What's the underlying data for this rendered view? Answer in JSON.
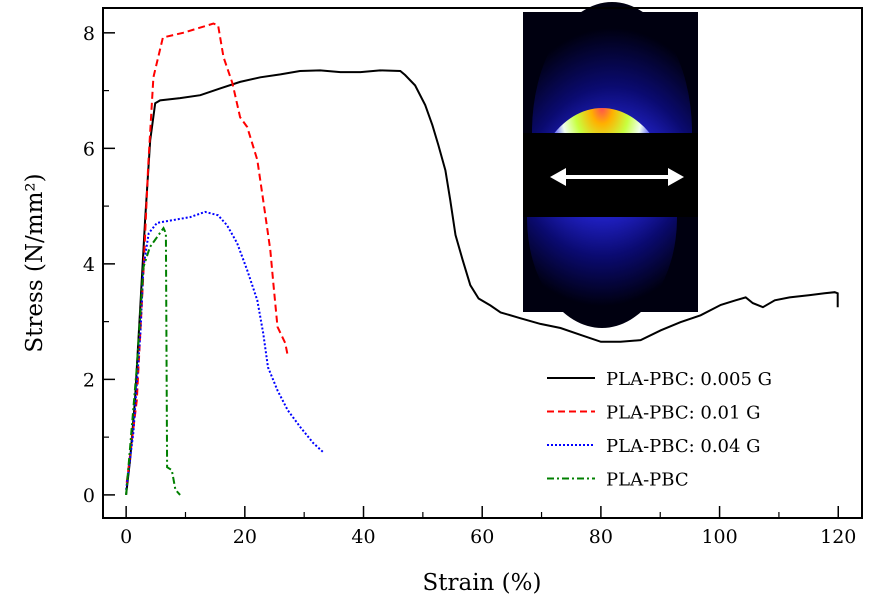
{
  "chart_data": {
    "type": "line",
    "title": "",
    "xlabel": "Strain (%)",
    "ylabel": "Stress (N/mm²)",
    "xlim": [
      -3.9,
      124
    ],
    "ylim": [
      -0.4,
      8.43
    ],
    "xticks": [
      0,
      20,
      40,
      60,
      80,
      100,
      120
    ],
    "yticks": [
      0,
      2,
      4,
      6,
      8
    ],
    "xtick_labels": [
      "0",
      "20",
      "40",
      "60",
      "80",
      "100",
      "120"
    ],
    "ytick_labels": [
      "0",
      "2",
      "4",
      "6",
      "8"
    ],
    "grid": false,
    "legend_position": "bottom-right",
    "inset": "2D scattering pattern image with double-headed horizontal arrow",
    "series": [
      {
        "name": "PLA-PBC: 0.005 G",
        "color": "#000000",
        "dash": "solid",
        "x": [
          0,
          0.67,
          1.5,
          2.36,
          3.2,
          4.05,
          4.89,
          5.73,
          9.1,
          12.5,
          15.9,
          19.2,
          22.6,
          26,
          29.3,
          32.7,
          36.1,
          39.5,
          42.8,
          46.2,
          47.0,
          48.7,
          50.4,
          51.6,
          52.6,
          53.8,
          54.6,
          55.5,
          56.7,
          58,
          59.4,
          61.4,
          63.1,
          66.4,
          69.8,
          73.2,
          76.6,
          80,
          83.3,
          86.7,
          90.1,
          93.4,
          96.8,
          100.2,
          102.7,
          104.4,
          105.6,
          107.3,
          109.3,
          111.8,
          115.2,
          117.7,
          119.4,
          119.9,
          119.9
        ],
        "y": [
          0,
          0.61,
          1.64,
          3.2,
          4.76,
          6.14,
          6.78,
          6.83,
          6.87,
          6.92,
          7.04,
          7.15,
          7.23,
          7.28,
          7.34,
          7.35,
          7.32,
          7.32,
          7.35,
          7.34,
          7.27,
          7.09,
          6.75,
          6.4,
          6.06,
          5.62,
          5.11,
          4.5,
          4.07,
          3.63,
          3.4,
          3.28,
          3.16,
          3.06,
          2.96,
          2.89,
          2.77,
          2.65,
          2.65,
          2.68,
          2.85,
          2.99,
          3.11,
          3.29,
          3.37,
          3.42,
          3.32,
          3.25,
          3.37,
          3.42,
          3.46,
          3.49,
          3.51,
          3.49,
          3.25
        ]
      },
      {
        "name": "PLA-PBC: 0.01 G",
        "color": "#ff0000",
        "dash": "dashed",
        "x": [
          0.1,
          1.8,
          2.9,
          3.7,
          4.6,
          6.2,
          9.6,
          14.7,
          15.5,
          16.4,
          17.9,
          19.2,
          20.4,
          22.1,
          23.1,
          24.3,
          24.8,
          25.5,
          26.8,
          27.2
        ],
        "y": [
          0.21,
          1.64,
          3.84,
          5.67,
          7.23,
          7.92,
          8.0,
          8.16,
          8.13,
          7.58,
          7.13,
          6.54,
          6.37,
          5.8,
          5.1,
          4.24,
          3.67,
          2.91,
          2.63,
          2.42
        ]
      },
      {
        "name": "PLA-PBC: 0.04 G",
        "color": "#0000ff",
        "dash": "dotted",
        "x": [
          0,
          1.2,
          2.4,
          2.9,
          3.8,
          5.2,
          6.9,
          10.8,
          13.3,
          15.5,
          17,
          18.7,
          20.4,
          22.1,
          23.1,
          23.9,
          25.5,
          27.2,
          29.3,
          31.5,
          33.2
        ],
        "y": [
          0.09,
          1.07,
          2.8,
          3.94,
          4.53,
          4.71,
          4.74,
          4.81,
          4.9,
          4.84,
          4.67,
          4.36,
          3.89,
          3.37,
          2.8,
          2.21,
          1.81,
          1.47,
          1.18,
          0.9,
          0.74
        ]
      },
      {
        "name": "PLA-PBC",
        "color": "#008000",
        "dash": "dashdot",
        "x": [
          0,
          1.8,
          2.9,
          4.0,
          6.3,
          6.7,
          6.9,
          7.7,
          8.3,
          9.1
        ],
        "y": [
          0,
          2.21,
          3.94,
          4.29,
          4.62,
          4.53,
          0.48,
          0.43,
          0.09,
          0
        ]
      }
    ]
  }
}
